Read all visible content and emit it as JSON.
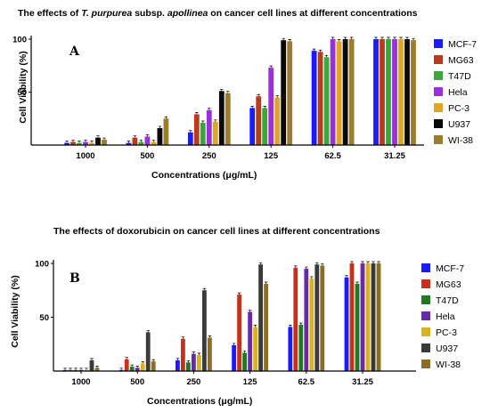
{
  "chart_data": [
    {
      "type": "bar",
      "title_parts": [
        "The effects of ",
        "T. purpurea",
        " subsp. ",
        "apollinea",
        " on cancer cell lines at different concentrations"
      ],
      "panel_label": "A",
      "xlabel": "Concentrations (μg/mL)",
      "ylabel": "Cell Viability (%)",
      "ylim": [
        0,
        100
      ],
      "yticks": [
        50,
        100
      ],
      "categories": [
        "1000",
        "500",
        "250",
        "125",
        "62.5",
        "31.25"
      ],
      "legend_position": "right",
      "grid": false,
      "series": [
        {
          "name": "MCF-7",
          "color": "#1a1aff",
          "values": [
            2,
            2,
            12,
            35,
            89,
            100
          ]
        },
        {
          "name": "MG63",
          "color": "#b83c1c",
          "values": [
            3,
            7,
            29,
            46,
            88,
            100
          ]
        },
        {
          "name": "T47D",
          "color": "#3aa838",
          "values": [
            2,
            3,
            21,
            35,
            83,
            100
          ]
        },
        {
          "name": "Hela",
          "color": "#9b30d9",
          "values": [
            3,
            8,
            33,
            73,
            100,
            100
          ]
        },
        {
          "name": "PC-3",
          "color": "#e0a526",
          "values": [
            2,
            3,
            22,
            45,
            98,
            100
          ]
        },
        {
          "name": "U937",
          "color": "#0a0a0a",
          "values": [
            7,
            16,
            51,
            99,
            100,
            100
          ]
        },
        {
          "name": "WI-38",
          "color": "#9c7c2e",
          "values": [
            5,
            25,
            49,
            98,
            100,
            99
          ]
        }
      ]
    },
    {
      "type": "bar",
      "title": "The effects of doxorubicin on cancer cell lines at different concentrations",
      "panel_label": "B",
      "xlabel": "Concentrations (μg/mL)",
      "ylabel": "Cell Viability (%)",
      "ylim": [
        0,
        100
      ],
      "yticks": [
        50,
        100
      ],
      "categories": [
        "1000",
        "500",
        "250",
        "125",
        "62.5",
        "31.25"
      ],
      "legend_position": "right",
      "grid": false,
      "series": [
        {
          "name": "MCF-7",
          "color": "#1a1aff",
          "values": [
            1,
            1,
            10,
            24,
            41,
            87
          ]
        },
        {
          "name": "MG63",
          "color": "#c8301a",
          "values": [
            1,
            11,
            30,
            71,
            96,
            100
          ]
        },
        {
          "name": "T47D",
          "color": "#1f7a1f",
          "values": [
            1,
            4,
            8,
            17,
            43,
            81
          ]
        },
        {
          "name": "Hela",
          "color": "#6a2aa8",
          "values": [
            1,
            3,
            16,
            55,
            95,
            100
          ]
        },
        {
          "name": "PC-3",
          "color": "#d9b21e",
          "values": [
            1,
            7,
            15,
            41,
            86,
            100
          ]
        },
        {
          "name": "U937",
          "color": "#3a3a3a",
          "values": [
            10,
            36,
            75,
            99,
            99,
            100
          ]
        },
        {
          "name": "WI-38",
          "color": "#8c6d23",
          "values": [
            3,
            9,
            31,
            81,
            98,
            100
          ]
        }
      ]
    }
  ]
}
